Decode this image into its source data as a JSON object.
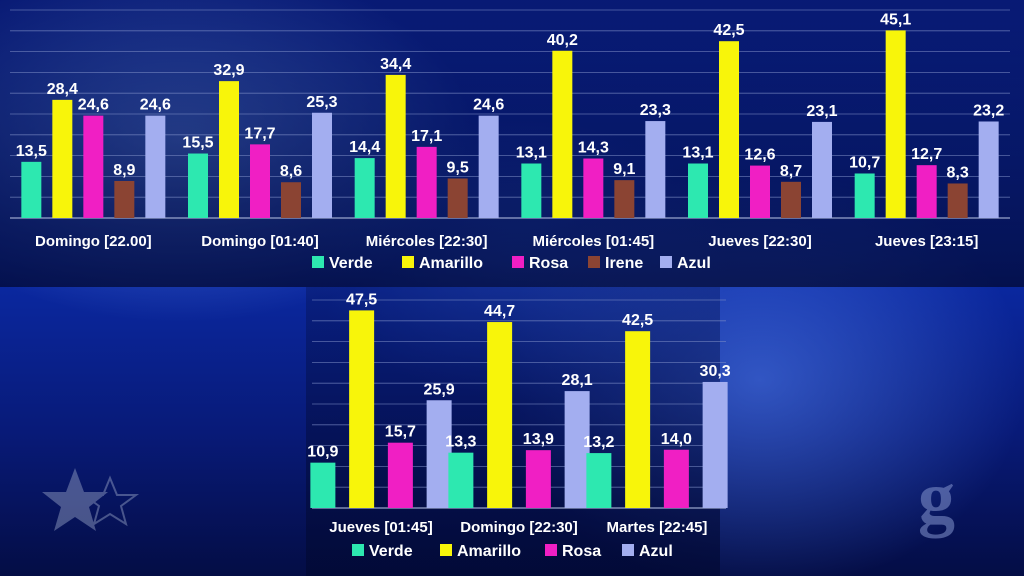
{
  "chart_data": [
    {
      "type": "bar",
      "categories": [
        "Domingo [22.00]",
        "Domingo [01:40]",
        "Miércoles [22:30]",
        "Miércoles [01:45]",
        "Jueves [22:30]",
        "Jueves [23:15]"
      ],
      "series": [
        {
          "name": "Verde",
          "color": "#2de8b0",
          "values": [
            13.5,
            15.5,
            14.4,
            13.1,
            13.1,
            10.7
          ],
          "labels": [
            "13,5",
            "15,5",
            "14,4",
            "13,1",
            "13,1",
            "10,7"
          ]
        },
        {
          "name": "Amarillo",
          "color": "#f8f50a",
          "values": [
            28.4,
            32.9,
            34.4,
            40.2,
            42.5,
            45.1
          ],
          "labels": [
            "28,4",
            "32,9",
            "34,4",
            "40,2",
            "42,5",
            "45,1"
          ]
        },
        {
          "name": "Rosa",
          "color": "#f01fc4",
          "values": [
            24.6,
            17.7,
            17.1,
            14.3,
            12.6,
            12.7
          ],
          "labels": [
            "24,6",
            "17,7",
            "17,1",
            "14,3",
            "12,6",
            "12,7"
          ]
        },
        {
          "name": "Irene",
          "color": "#8b4433",
          "values": [
            8.9,
            8.6,
            9.5,
            9.1,
            8.7,
            8.3
          ],
          "labels": [
            "8,9",
            "8,6",
            "9,5",
            "9,1",
            "8,7",
            "8,3"
          ]
        },
        {
          "name": "Azul",
          "color": "#a3aef0",
          "values": [
            24.6,
            25.3,
            24.6,
            23.3,
            23.1,
            23.2
          ],
          "labels": [
            "24,6",
            "25,3",
            "24,6",
            "23,3",
            "23,1",
            "23,2"
          ]
        }
      ],
      "ylim": [
        0,
        50
      ],
      "grid": true,
      "legend": "bottom"
    },
    {
      "type": "bar",
      "categories": [
        "Jueves [01:45]",
        "Domingo [22:30]",
        "Martes [22:45]"
      ],
      "series": [
        {
          "name": "Verde",
          "color": "#2de8b0",
          "values": [
            10.9,
            13.3,
            13.2
          ],
          "labels": [
            "10,9",
            "13,3",
            "13,2"
          ]
        },
        {
          "name": "Amarillo",
          "color": "#f8f50a",
          "values": [
            47.5,
            44.7,
            42.5
          ],
          "labels": [
            "47,5",
            "44,7",
            "42,5"
          ]
        },
        {
          "name": "Rosa",
          "color": "#f01fc4",
          "values": [
            15.7,
            13.9,
            14.0
          ],
          "labels": [
            "15,7",
            "13,9",
            "14,0"
          ]
        },
        {
          "name": "Azul",
          "color": "#a3aef0",
          "values": [
            25.9,
            28.1,
            30.3
          ],
          "labels": [
            "25,9",
            "28,1",
            "30,3"
          ]
        }
      ],
      "ylim": [
        0,
        50
      ],
      "grid": true,
      "legend": "bottom"
    }
  ],
  "icons": {
    "left": "star-logo-icon",
    "right": "g-logo-icon"
  }
}
